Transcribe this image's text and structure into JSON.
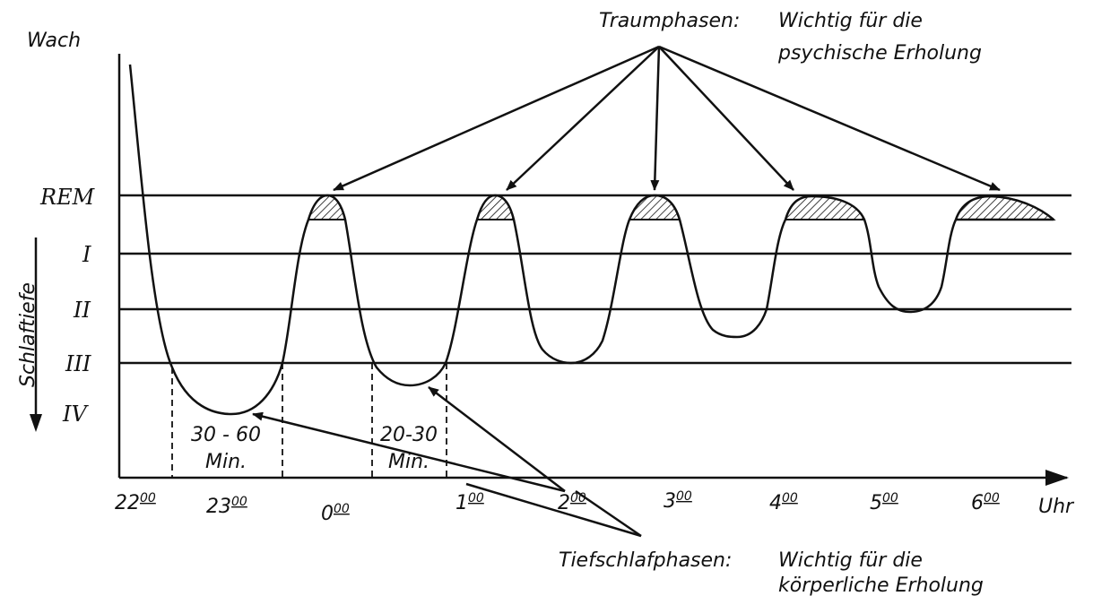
{
  "y_levels": {
    "awake": "Wach",
    "rem": "REM",
    "levels": [
      "I",
      "II",
      "III",
      "IV"
    ],
    "depth_label": "Schlaftiefe"
  },
  "x_axis": {
    "hours": [
      {
        "hour": "22",
        "minutes": "00"
      },
      {
        "hour": "23",
        "minutes": "00"
      },
      {
        "hour": "0",
        "minutes": "00"
      },
      {
        "hour": "1",
        "minutes": "00"
      },
      {
        "hour": "2",
        "minutes": "00"
      },
      {
        "hour": "3",
        "minutes": "00"
      },
      {
        "hour": "4",
        "minutes": "00"
      },
      {
        "hour": "5",
        "minutes": "00"
      },
      {
        "hour": "6",
        "minutes": "00"
      }
    ],
    "unit": "Uhr"
  },
  "durations": [
    {
      "range": "30 - 60",
      "unit": "Min."
    },
    {
      "range": "20-30",
      "unit": "Min."
    }
  ],
  "annotations": {
    "dream": {
      "title": "Traumphasen:",
      "lines": [
        "Wichtig für die",
        "psychische Erholung"
      ]
    },
    "deep": {
      "title": "Tiefschlafphasen:",
      "lines": [
        "Wichtig für die",
        "körperliche Erholung"
      ]
    }
  }
}
